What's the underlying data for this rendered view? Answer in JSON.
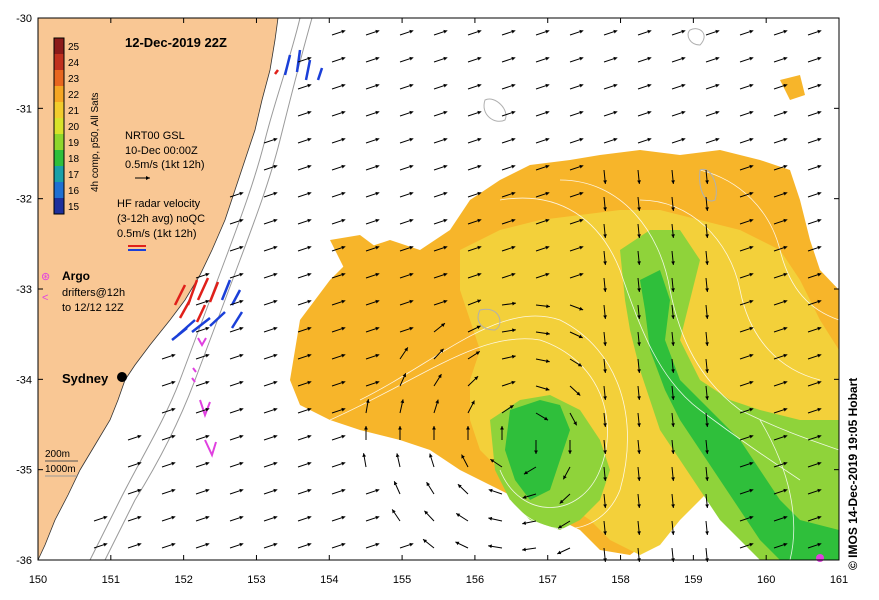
{
  "title": "12-Dec-2019 22Z",
  "credit": "© IMOS 14-Dec-2019 19:05 Hobart",
  "colorbar": {
    "label": "4h comp, p50, All Sats",
    "ticks": [
      "25",
      "24",
      "23",
      "22",
      "21",
      "20",
      "19",
      "18",
      "17",
      "16",
      "15"
    ],
    "colors": [
      "#8b1a1a",
      "#c0301e",
      "#e8661f",
      "#f5a623",
      "#f2cc2c",
      "#d8e22a",
      "#8ed62c",
      "#2fbf3b",
      "#19a0a8",
      "#1f6fd2",
      "#1d2f9c"
    ]
  },
  "legend": {
    "nrt_lines": [
      "NRT00 GSL",
      "10-Dec 00:00Z",
      "0.5m/s (1kt 12h)"
    ],
    "hf_lines": [
      "HF radar velocity",
      "(3-12h avg) noQC",
      "0.5m/s (1kt 12h)"
    ],
    "argo_label": "Argo",
    "drifter_lines": [
      "drifters@12h",
      "to 12/12 12Z"
    ],
    "argo_symbol": "⊛",
    "drifter_symbol": "<"
  },
  "depth_legend": [
    "200m",
    "1000m"
  ],
  "place_label": "Sydney",
  "axes": {
    "x_ticks": [
      "150",
      "151",
      "152",
      "153",
      "154",
      "155",
      "156",
      "157",
      "158",
      "159",
      "160",
      "161"
    ],
    "y_ticks": [
      "-30",
      "-31",
      "-32",
      "-33",
      "-34",
      "-35",
      "-36"
    ],
    "lon_range": [
      150,
      161
    ],
    "lat_range": [
      -36,
      -30
    ]
  },
  "colors": {
    "land": "#f9c794",
    "sea": "#ffffff",
    "sst_warm": "#f7b52a",
    "sst_mid": "#f3d03a",
    "sst_cool": "#8fd33a",
    "sst_cold": "#2fbf3b",
    "hf_red": "#e0201a",
    "hf_blue": "#1a3fd8",
    "drifter": "#e040e0"
  }
}
